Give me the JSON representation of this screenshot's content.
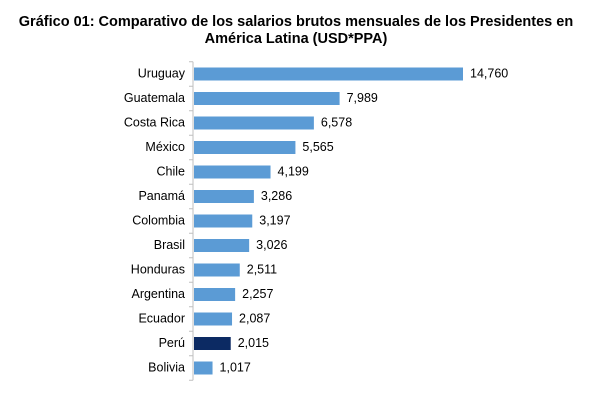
{
  "title_lines": [
    "Gráfico 01: Comparativo de los salarios brutos mensuales de los Presidentes en",
    "América Latina (USD*PPA)"
  ],
  "colors": {
    "bar": "#5b9bd5",
    "highlight": "#0c2a63",
    "axis": "#bfbfbf"
  },
  "chart_data": {
    "type": "bar",
    "orientation": "horizontal",
    "title": "Gráfico 01: Comparativo de los salarios brutos mensuales de los Presidentes en América Latina (USD*PPA)",
    "categories": [
      "Uruguay",
      "Guatemala",
      "Costa Rica",
      "México",
      "Chile",
      "Panamá",
      "Colombia",
      "Brasil",
      "Honduras",
      "Argentina",
      "Ecuador",
      "Perú",
      "Bolivia"
    ],
    "values": [
      14760,
      7989,
      6578,
      5565,
      4199,
      3286,
      3197,
      3026,
      2511,
      2257,
      2087,
      2015,
      1017
    ],
    "value_labels": [
      "14,760",
      "7,989",
      "6,578",
      "5,565",
      "4,199",
      "3,286",
      "3,197",
      "3,026",
      "2,511",
      "2,257",
      "2,087",
      "2,015",
      "1,017"
    ],
    "highlight_category": "Perú",
    "xlim": [
      0,
      15000
    ],
    "xlabel": "",
    "ylabel": "",
    "grid": false,
    "legend": "none"
  }
}
